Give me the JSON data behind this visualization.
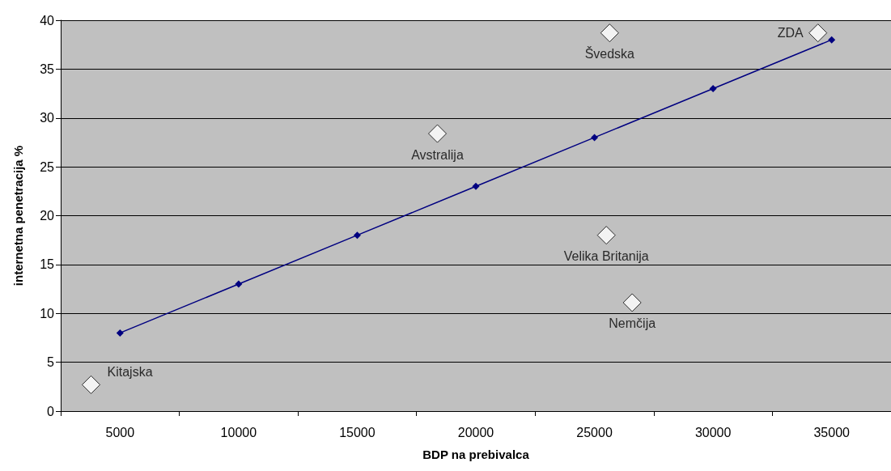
{
  "chart_data": {
    "type": "line",
    "xlabel": "BDP na prebivalca",
    "ylabel": "internetna penetracija %",
    "x": [
      5000,
      10000,
      15000,
      20000,
      25000,
      30000,
      35000
    ],
    "series": [
      {
        "color": "#000080",
        "marker": "diamond",
        "values": [
          8,
          13,
          18,
          23,
          28,
          33,
          38
        ]
      },
      {
        "type": "scatter",
        "color": "#ffffff",
        "marker": "diamond",
        "x": [
          3780,
          18380,
          25640,
          34420,
          25500,
          26590
        ],
        "values": [
          2.7,
          28.4,
          38.7,
          38.7,
          18.0,
          11.1
        ]
      }
    ],
    "annotations": [
      {
        "text": "Kitajska",
        "x": 3780,
        "y": 2.7
      },
      {
        "text": "Avstralija",
        "x": 18380,
        "y": 28.4
      },
      {
        "text": "Švedska",
        "x": 25640,
        "y": 38.7
      },
      {
        "text": "ZDA",
        "x": 34420,
        "y": 38.7
      },
      {
        "text": "Velika Britanija",
        "x": 25500,
        "y": 18.0
      },
      {
        "text": "Nemčija",
        "x": 26590,
        "y": 11.1
      }
    ],
    "xlim": [
      2500,
      37500
    ],
    "xticks": [
      {
        "value": 2500,
        "label": null
      },
      5000,
      {
        "value": 7500,
        "label": null
      },
      10000,
      {
        "value": 12500,
        "label": null
      },
      15000,
      {
        "value": 17500,
        "label": null
      },
      20000,
      {
        "value": 22500,
        "label": null
      },
      25000,
      {
        "value": 27500,
        "label": null
      },
      30000,
      {
        "value": 32500,
        "label": null
      },
      35000
    ],
    "ylim": [
      0,
      40
    ],
    "yticks": [
      0,
      5,
      10,
      15,
      20,
      25,
      30,
      35,
      40
    ],
    "grid": "y"
  }
}
